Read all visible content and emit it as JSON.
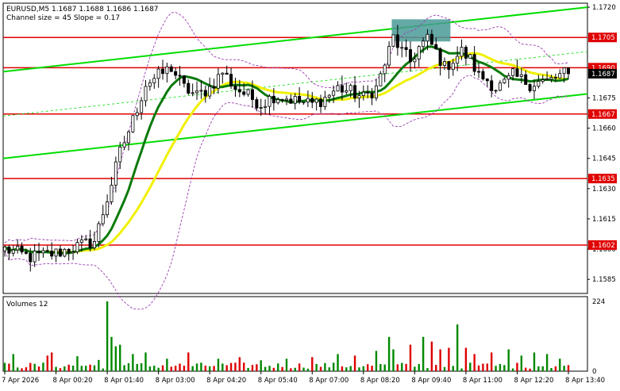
{
  "header": {
    "symbol_line": "EURUSD,M5  1.1687 1.1688 1.1686 1.1687",
    "channel_line": "Channel size = 45 Slope = 0.17"
  },
  "volumes_label": "Volumes 12",
  "colors": {
    "candle": "#000000",
    "level_line": "#e00000",
    "level_box": "#e00000",
    "channel": "#00dd00",
    "ma_fast": "#0b7a0b",
    "ma_slow": "#f0f000",
    "bollinger": "#9a3db0",
    "highlight_box": "#4a9a98",
    "vol_up": "#008800",
    "vol_down": "#dd0000",
    "price_box": "#000000"
  },
  "chart_data": [
    {
      "type": "candlestick",
      "ylim": [
        1.1578,
        1.1722
      ],
      "price_ticks": [
        "1.1720",
        "1.1690",
        "1.1675",
        "1.1660",
        "1.1645",
        "1.1630",
        "1.1615",
        "1.1600",
        "1.1585"
      ],
      "levels": [
        "1.1705",
        "1.1690",
        "1.1667",
        "1.1635",
        "1.1602"
      ],
      "current_price": "1.1687",
      "x_labels": [
        "7 Apr 2026",
        "8 Apr 00:20",
        "8 Apr 01:40",
        "8 Apr 03:00",
        "8 Apr 04:20",
        "8 Apr 05:40",
        "8 Apr 07:00",
        "8 Apr 08:20",
        "8 Apr 09:40",
        "8 Apr 11:00",
        "8 Apr 12:20",
        "8 Apr 13:40"
      ],
      "anchors": [
        [
          0,
          1.16
        ],
        [
          6,
          1.1596
        ],
        [
          12,
          1.1598
        ],
        [
          18,
          1.1602
        ],
        [
          21,
          1.1604
        ],
        [
          24,
          1.1625
        ],
        [
          27,
          1.1648
        ],
        [
          30,
          1.1664
        ],
        [
          33,
          1.1682
        ],
        [
          36,
          1.1686
        ],
        [
          39,
          1.169
        ],
        [
          42,
          1.168
        ],
        [
          45,
          1.1676
        ],
        [
          48,
          1.168
        ],
        [
          51,
          1.1688
        ],
        [
          54,
          1.168
        ],
        [
          57,
          1.1676
        ],
        [
          60,
          1.1672
        ],
        [
          63,
          1.1676
        ],
        [
          66,
          1.1675
        ],
        [
          69,
          1.1673
        ],
        [
          72,
          1.1672
        ],
        [
          75,
          1.1675
        ],
        [
          78,
          1.168
        ],
        [
          81,
          1.1678
        ],
        [
          84,
          1.1675
        ],
        [
          87,
          1.168
        ],
        [
          89,
          1.1692
        ],
        [
          91,
          1.1705
        ],
        [
          93,
          1.1698
        ],
        [
          95,
          1.1693
        ],
        [
          97,
          1.17
        ],
        [
          99,
          1.1704
        ],
        [
          101,
          1.1698
        ],
        [
          103,
          1.169
        ],
        [
          105,
          1.1694
        ],
        [
          107,
          1.1698
        ],
        [
          109,
          1.1694
        ],
        [
          111,
          1.1686
        ],
        [
          113,
          1.1684
        ],
        [
          115,
          1.168
        ],
        [
          117,
          1.1682
        ],
        [
          119,
          1.1686
        ],
        [
          121,
          1.1684
        ],
        [
          123,
          1.1682
        ],
        [
          125,
          1.1683
        ],
        [
          127,
          1.1683
        ],
        [
          129,
          1.1685
        ],
        [
          131,
          1.1687
        ],
        [
          132,
          1.1687
        ]
      ],
      "volume_max": 224,
      "volume_ticks": [
        "224",
        "0"
      ],
      "volume_spikes": [
        [
          2,
          55
        ],
        [
          10,
          50
        ],
        [
          11,
          60
        ],
        [
          17,
          48
        ],
        [
          22,
          36
        ],
        [
          24,
          224
        ],
        [
          25,
          110
        ],
        [
          26,
          80
        ],
        [
          27,
          85
        ],
        [
          30,
          55
        ],
        [
          33,
          60
        ],
        [
          38,
          40
        ],
        [
          43,
          60
        ],
        [
          50,
          40
        ],
        [
          55,
          45
        ],
        [
          60,
          35
        ],
        [
          66,
          40
        ],
        [
          72,
          45
        ],
        [
          78,
          55
        ],
        [
          82,
          50
        ],
        [
          87,
          65
        ],
        [
          90,
          110
        ],
        [
          91,
          70
        ],
        [
          95,
          85
        ],
        [
          98,
          110
        ],
        [
          100,
          95
        ],
        [
          102,
          70
        ],
        [
          104,
          75
        ],
        [
          106,
          150
        ],
        [
          108,
          75
        ],
        [
          110,
          55
        ],
        [
          114,
          60
        ],
        [
          118,
          70
        ],
        [
          121,
          50
        ],
        [
          124,
          60
        ],
        [
          127,
          55
        ],
        [
          130,
          40
        ]
      ]
    }
  ]
}
